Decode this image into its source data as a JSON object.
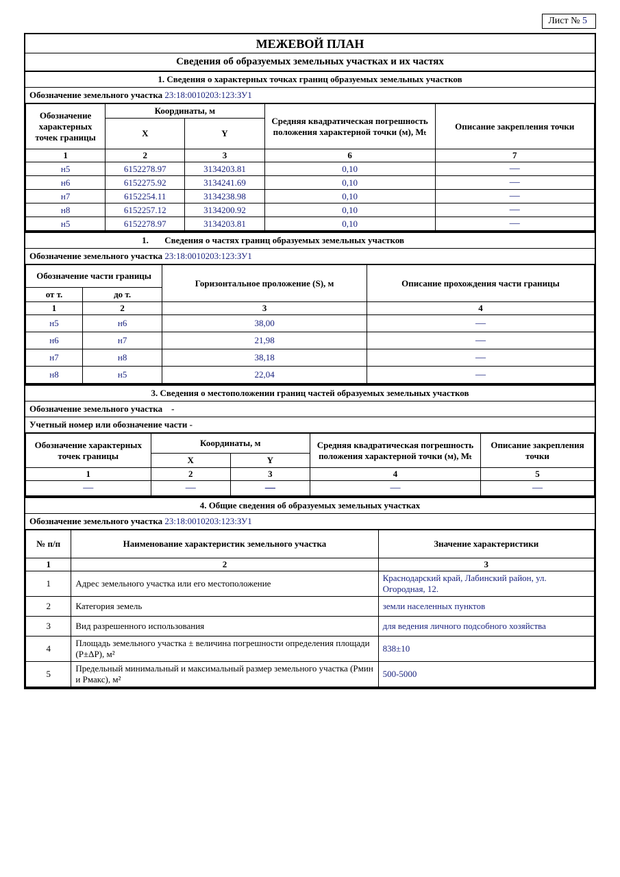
{
  "sheet": {
    "label": "Лист №",
    "number": "5"
  },
  "titles": {
    "main": "МЕЖЕВОЙ ПЛАН",
    "sub": "Сведения об образуемых земельных участках и их частях"
  },
  "section1": {
    "heading": "1. Сведения о характерных точках границ образуемых земельных участков",
    "designation_label": "Обозначение земельного участка",
    "designation_value": "23:18:0010203:123:ЗУ1",
    "columns": {
      "c1": "Обозначение характерных точек границы",
      "c2": "Координаты, м",
      "c2x": "X",
      "c2y": "Y",
      "c3": "Средняя квадратическая погрешность положения характерной точки (м), Mₜ",
      "c4": "Описание закрепления точки"
    },
    "idx": {
      "a": "1",
      "b": "2",
      "c": "3",
      "d": "6",
      "e": "7"
    },
    "rows": [
      {
        "pt": "н5",
        "x": "6152278.97",
        "y": "3134203.81",
        "err": "0,10",
        "fix": "—"
      },
      {
        "pt": "н6",
        "x": "6152275.92",
        "y": "3134241.69",
        "err": "0,10",
        "fix": "—"
      },
      {
        "pt": "н7",
        "x": "6152254.11",
        "y": "3134238.98",
        "err": "0,10",
        "fix": "—"
      },
      {
        "pt": "н8",
        "x": "6152257.12",
        "y": "3134200.92",
        "err": "0,10",
        "fix": "—"
      },
      {
        "pt": "н5",
        "x": "6152278.97",
        "y": "3134203.81",
        "err": "0,10",
        "fix": "—"
      }
    ]
  },
  "section2": {
    "heading_num": "1.",
    "heading_text": "Сведения о частях границ образуемых земельных участков",
    "designation_label": "Обозначение земельного участка",
    "designation_value": "23:18:0010203:123:ЗУ1",
    "columns": {
      "c1": "Обозначение части границы",
      "from": "от т.",
      "to": "до т.",
      "s": "Горизонтальное проложение (S), м",
      "desc": "Описание прохождения части границы"
    },
    "idx": {
      "a": "1",
      "b": "2",
      "c": "3",
      "d": "4"
    },
    "rows": [
      {
        "f": "н5",
        "t": "н6",
        "s": "38,00",
        "d": "—"
      },
      {
        "f": "н6",
        "t": "н7",
        "s": "21,98",
        "d": "—"
      },
      {
        "f": "н7",
        "t": "н8",
        "s": "38,18",
        "d": "—"
      },
      {
        "f": "н8",
        "t": "н5",
        "s": "22,04",
        "d": "—"
      }
    ]
  },
  "section3": {
    "heading": "3. Сведения о местоположении границ частей образуемых земельных участков",
    "designation_label": "Обозначение земельного участка",
    "designation_value": "-",
    "acct_label": "Учетный номер или обозначение части -",
    "columns": {
      "c1": "Обозначение характерных точек границы",
      "c2": "Координаты, м",
      "c2x": "X",
      "c2y": "Y",
      "c3": "Средняя квадратическая погрешность положения характерной точки (м), Mₜ",
      "c4": "Описание закрепления точки"
    },
    "idx": {
      "a": "1",
      "b": "2",
      "c": "3",
      "d": "4",
      "e": "5"
    },
    "empty": "—"
  },
  "section4": {
    "heading": "4. Общие сведения об образуемых земельных участках",
    "designation_label": "Обозначение земельного участка",
    "designation_value": "23:18:0010203:123:ЗУ1",
    "columns": {
      "n": "№ п/п",
      "name": "Наименование характеристик земельного участка",
      "val": "Значение характеристики"
    },
    "idx": {
      "a": "1",
      "b": "2",
      "c": "3"
    },
    "rows": [
      {
        "n": "1",
        "name": "Адрес земельного участка или его местоположение",
        "val": "Краснодарский край, Лабинский район, ул. Огородная, 12."
      },
      {
        "n": "2",
        "name": "Категория земель",
        "val": "земли населенных пунктов"
      },
      {
        "n": "3",
        "name": "Вид разрешенного использования",
        "val": "для ведения личного подсобного хозяйства"
      },
      {
        "n": "4",
        "name": "Площадь земельного  участка ± величина погрешности определения площади (P±ΔP), м²",
        "val": "838±10"
      },
      {
        "n": "5",
        "name": "Предельный минимальный и максимальный размер земельного участка (Рмин и Рмакс), м²",
        "val": "500-5000"
      }
    ]
  }
}
